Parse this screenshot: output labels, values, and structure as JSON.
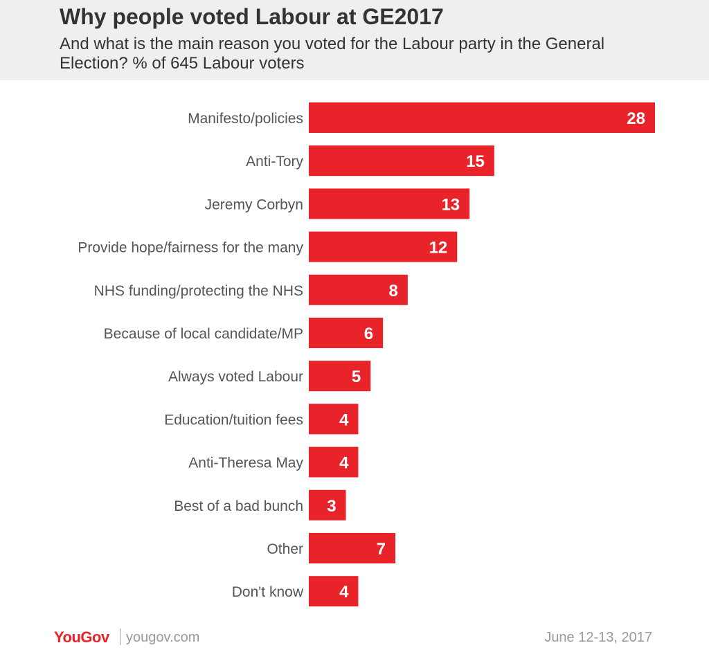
{
  "header": {
    "title": "Why people voted Labour at GE2017",
    "subtitle": "And what is the main reason you voted for the Labour party in the General Election? % of 645 Labour voters"
  },
  "footer": {
    "brand_you": "You",
    "brand_gov": "Gov",
    "url": "yougov.com",
    "date": "June 12-13, 2017"
  },
  "colors": {
    "bar": "#e8242a",
    "label": "#555555",
    "value": "#ffffff",
    "header_bg": "#efefef"
  },
  "chart_data": {
    "type": "bar",
    "orientation": "horizontal",
    "categories": [
      "Manifesto/policies",
      "Anti-Tory",
      "Jeremy Corbyn",
      "Provide hope/fairness for the many",
      "NHS funding/protecting the NHS",
      "Because of local candidate/MP",
      "Always voted Labour",
      "Education/tuition fees",
      "Anti-Theresa May",
      "Best of a bad bunch",
      "Other",
      "Don't know"
    ],
    "values": [
      28,
      15,
      13,
      12,
      8,
      6,
      5,
      4,
      4,
      3,
      7,
      4
    ],
    "title": "Why people voted Labour at GE2017",
    "xlabel": "",
    "ylabel": "",
    "xlim": [
      0,
      28
    ],
    "grid": false,
    "data_labels": true
  }
}
